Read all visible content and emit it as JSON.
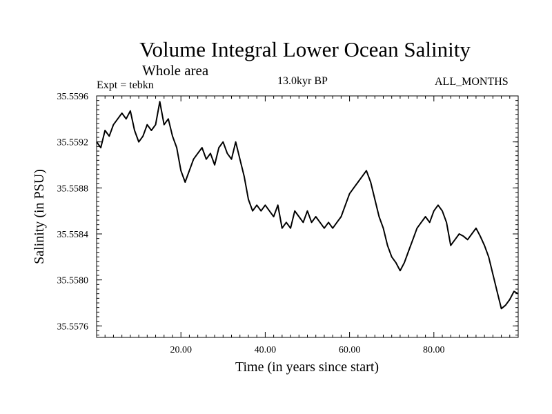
{
  "header": {
    "title": "Volume Integral Lower Ocean Salinity",
    "subtitle": "Whole area",
    "experiment": "Expt = tebkn",
    "period": "13.0kyr BP",
    "months": "ALL_MONTHS"
  },
  "chart_data": {
    "type": "line",
    "title": "Volume Integral Lower Ocean Salinity",
    "xlabel": "Time (in years since start)",
    "ylabel": "Salinity (in PSU)",
    "xlim": [
      0,
      100
    ],
    "ylim": [
      35.5575,
      35.5596
    ],
    "x_ticks": [
      20,
      40,
      60,
      80
    ],
    "x_tick_labels": [
      "20.00",
      "40.00",
      "60.00",
      "80.00"
    ],
    "y_ticks": [
      35.5576,
      35.558,
      35.5584,
      35.5588,
      35.5592,
      35.5596
    ],
    "y_tick_labels": [
      "35.5576",
      "35.5580",
      "35.5584",
      "35.5588",
      "35.5592",
      "35.5596"
    ],
    "grid": false,
    "series": [
      {
        "name": "Salinity",
        "color": "#000000",
        "points": [
          [
            0,
            35.5592
          ],
          [
            1,
            35.55915
          ],
          [
            2,
            35.5593
          ],
          [
            3,
            35.55925
          ],
          [
            4,
            35.55935
          ],
          [
            5,
            35.5594
          ],
          [
            6,
            35.55945
          ],
          [
            7,
            35.5594
          ],
          [
            8,
            35.55947
          ],
          [
            9,
            35.5593
          ],
          [
            10,
            35.5592
          ],
          [
            11,
            35.55925
          ],
          [
            12,
            35.55935
          ],
          [
            13,
            35.5593
          ],
          [
            14,
            35.55935
          ],
          [
            15,
            35.55955
          ],
          [
            16,
            35.55935
          ],
          [
            17,
            35.5594
          ],
          [
            18,
            35.55925
          ],
          [
            19,
            35.55915
          ],
          [
            20,
            35.55895
          ],
          [
            21,
            35.55885
          ],
          [
            22,
            35.55895
          ],
          [
            23,
            35.55905
          ],
          [
            24,
            35.5591
          ],
          [
            25,
            35.55915
          ],
          [
            26,
            35.55905
          ],
          [
            27,
            35.5591
          ],
          [
            28,
            35.559
          ],
          [
            29,
            35.55915
          ],
          [
            30,
            35.5592
          ],
          [
            31,
            35.5591
          ],
          [
            32,
            35.55905
          ],
          [
            33,
            35.5592
          ],
          [
            34,
            35.55905
          ],
          [
            35,
            35.5589
          ],
          [
            36,
            35.5587
          ],
          [
            37,
            35.5586
          ],
          [
            38,
            35.55865
          ],
          [
            39,
            35.5586
          ],
          [
            40,
            35.55865
          ],
          [
            41,
            35.5586
          ],
          [
            42,
            35.55855
          ],
          [
            43,
            35.55865
          ],
          [
            44,
            35.55845
          ],
          [
            45,
            35.5585
          ],
          [
            46,
            35.55845
          ],
          [
            47,
            35.5586
          ],
          [
            48,
            35.55855
          ],
          [
            49,
            35.5585
          ],
          [
            50,
            35.5586
          ],
          [
            51,
            35.5585
          ],
          [
            52,
            35.55855
          ],
          [
            53,
            35.5585
          ],
          [
            54,
            35.55845
          ],
          [
            55,
            35.5585
          ],
          [
            56,
            35.55845
          ],
          [
            57,
            35.5585
          ],
          [
            58,
            35.55855
          ],
          [
            59,
            35.55865
          ],
          [
            60,
            35.55875
          ],
          [
            61,
            35.5588
          ],
          [
            62,
            35.55885
          ],
          [
            63,
            35.5589
          ],
          [
            64,
            35.55895
          ],
          [
            65,
            35.55885
          ],
          [
            66,
            35.5587
          ],
          [
            67,
            35.55855
          ],
          [
            68,
            35.55845
          ],
          [
            69,
            35.5583
          ],
          [
            70,
            35.5582
          ],
          [
            71,
            35.55815
          ],
          [
            72,
            35.55808
          ],
          [
            73,
            35.55815
          ],
          [
            74,
            35.55825
          ],
          [
            75,
            35.55835
          ],
          [
            76,
            35.55845
          ],
          [
            77,
            35.5585
          ],
          [
            78,
            35.55855
          ],
          [
            79,
            35.5585
          ],
          [
            80,
            35.5586
          ],
          [
            81,
            35.55865
          ],
          [
            82,
            35.5586
          ],
          [
            83,
            35.5585
          ],
          [
            84,
            35.5583
          ],
          [
            85,
            35.55835
          ],
          [
            86,
            35.5584
          ],
          [
            87,
            35.55838
          ],
          [
            88,
            35.55835
          ],
          [
            89,
            35.5584
          ],
          [
            90,
            35.55845
          ],
          [
            91,
            35.55838
          ],
          [
            92,
            35.5583
          ],
          [
            93,
            35.5582
          ],
          [
            94,
            35.55805
          ],
          [
            95,
            35.5579
          ],
          [
            96,
            35.55775
          ],
          [
            97,
            35.55778
          ],
          [
            98,
            35.55783
          ],
          [
            99,
            35.5579
          ],
          [
            100,
            35.55788
          ]
        ]
      }
    ]
  }
}
